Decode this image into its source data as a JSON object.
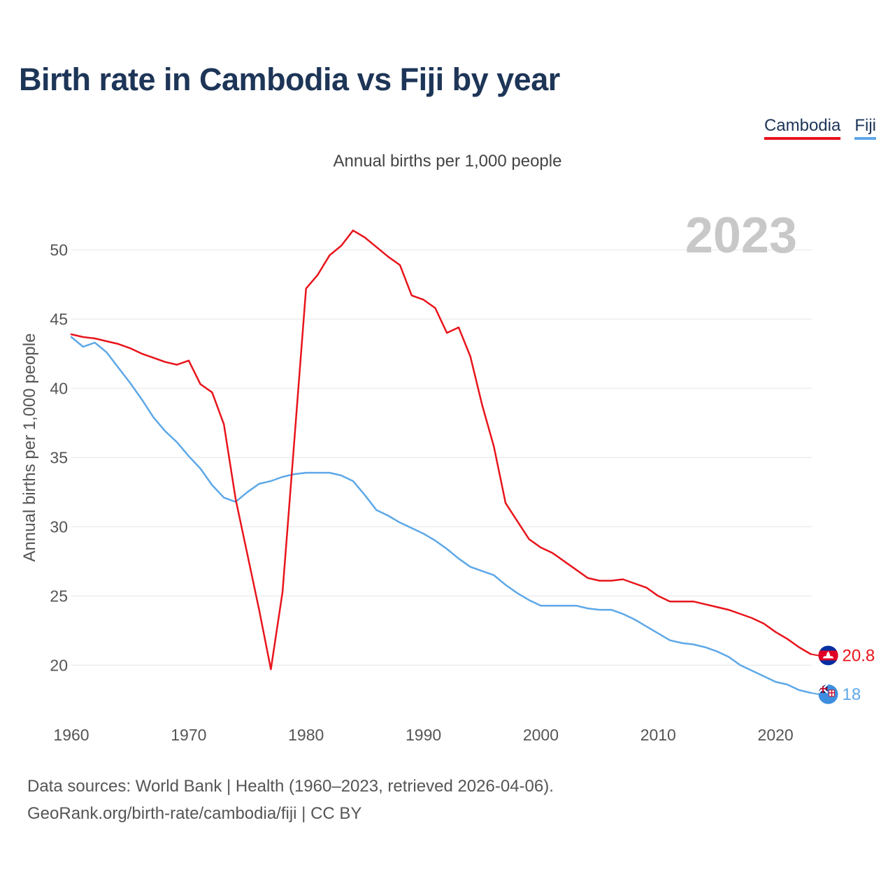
{
  "title": "Birth rate in Cambodia vs Fiji by year",
  "subtitle": "Annual births per 1,000 people",
  "legend": {
    "cambodia": "Cambodia",
    "fiji": "Fiji"
  },
  "year_label": "2023",
  "footer": {
    "line1": "Data sources: World Bank | Health (1960–2023, retrieved 2026-04-06).",
    "line2": "GeoRank.org/birth-rate/cambodia/fiji | CC BY"
  },
  "colors": {
    "cambodia": "#e8141b",
    "fiji": "#5da8e8",
    "grid": "#e6e6e6",
    "title": "#1d3557"
  },
  "chart_data": {
    "type": "line",
    "title": "Birth rate in Cambodia vs Fiji by year",
    "ylabel": "Annual births per 1,000 people",
    "xlabel": "",
    "xlim": [
      1960,
      2023
    ],
    "ylim": [
      17,
      53
    ],
    "xticks": [
      1960,
      1970,
      1980,
      1990,
      2000,
      2010,
      2020
    ],
    "yticks": [
      20,
      25,
      30,
      35,
      40,
      45,
      50
    ],
    "grid": true,
    "legend_position": "top-right",
    "x": [
      1960,
      1961,
      1962,
      1963,
      1964,
      1965,
      1966,
      1967,
      1968,
      1969,
      1970,
      1971,
      1972,
      1973,
      1974,
      1975,
      1976,
      1977,
      1978,
      1979,
      1980,
      1981,
      1982,
      1983,
      1984,
      1985,
      1986,
      1987,
      1988,
      1989,
      1990,
      1991,
      1992,
      1993,
      1994,
      1995,
      1996,
      1997,
      1998,
      1999,
      2000,
      2001,
      2002,
      2003,
      2004,
      2005,
      2006,
      2007,
      2008,
      2009,
      2010,
      2011,
      2012,
      2013,
      2014,
      2015,
      2016,
      2017,
      2018,
      2019,
      2020,
      2021,
      2022,
      2023
    ],
    "series": [
      {
        "name": "Cambodia",
        "values": [
          43.9,
          43.7,
          43.6,
          43.4,
          43.2,
          42.9,
          42.5,
          42.2,
          41.9,
          41.7,
          42.0,
          40.3,
          39.7,
          37.4,
          32.0,
          28.0,
          24.0,
          19.7,
          25.3,
          36.2,
          47.2,
          48.2,
          49.6,
          50.3,
          51.4,
          50.9,
          50.2,
          49.5,
          48.9,
          46.7,
          46.4,
          45.8,
          44.0,
          44.4,
          42.3,
          38.8,
          35.8,
          31.7,
          30.4,
          29.1,
          28.5,
          28.1,
          27.5,
          26.9,
          26.3,
          26.1,
          26.1,
          26.2,
          25.9,
          25.6,
          25.0,
          24.6,
          24.6,
          24.6,
          24.4,
          24.2,
          24.0,
          23.7,
          23.4,
          23.0,
          22.4,
          21.9,
          21.3,
          20.8
        ],
        "end_label": "20.8"
      },
      {
        "name": "Fiji",
        "values": [
          43.7,
          43.0,
          43.3,
          42.6,
          41.5,
          40.4,
          39.2,
          37.9,
          36.9,
          36.1,
          35.1,
          34.2,
          33.0,
          32.1,
          31.8,
          32.5,
          33.1,
          33.3,
          33.6,
          33.8,
          33.9,
          33.9,
          33.9,
          33.7,
          33.3,
          32.3,
          31.2,
          30.8,
          30.3,
          29.9,
          29.5,
          29.0,
          28.4,
          27.7,
          27.1,
          26.8,
          26.5,
          25.8,
          25.2,
          24.7,
          24.3,
          24.3,
          24.3,
          24.3,
          24.1,
          24.0,
          24.0,
          23.7,
          23.3,
          22.8,
          22.3,
          21.8,
          21.6,
          21.5,
          21.3,
          21.0,
          20.6,
          20.0,
          19.6,
          19.2,
          18.8,
          18.6,
          18.2,
          18.0
        ],
        "end_label": "18"
      }
    ]
  }
}
